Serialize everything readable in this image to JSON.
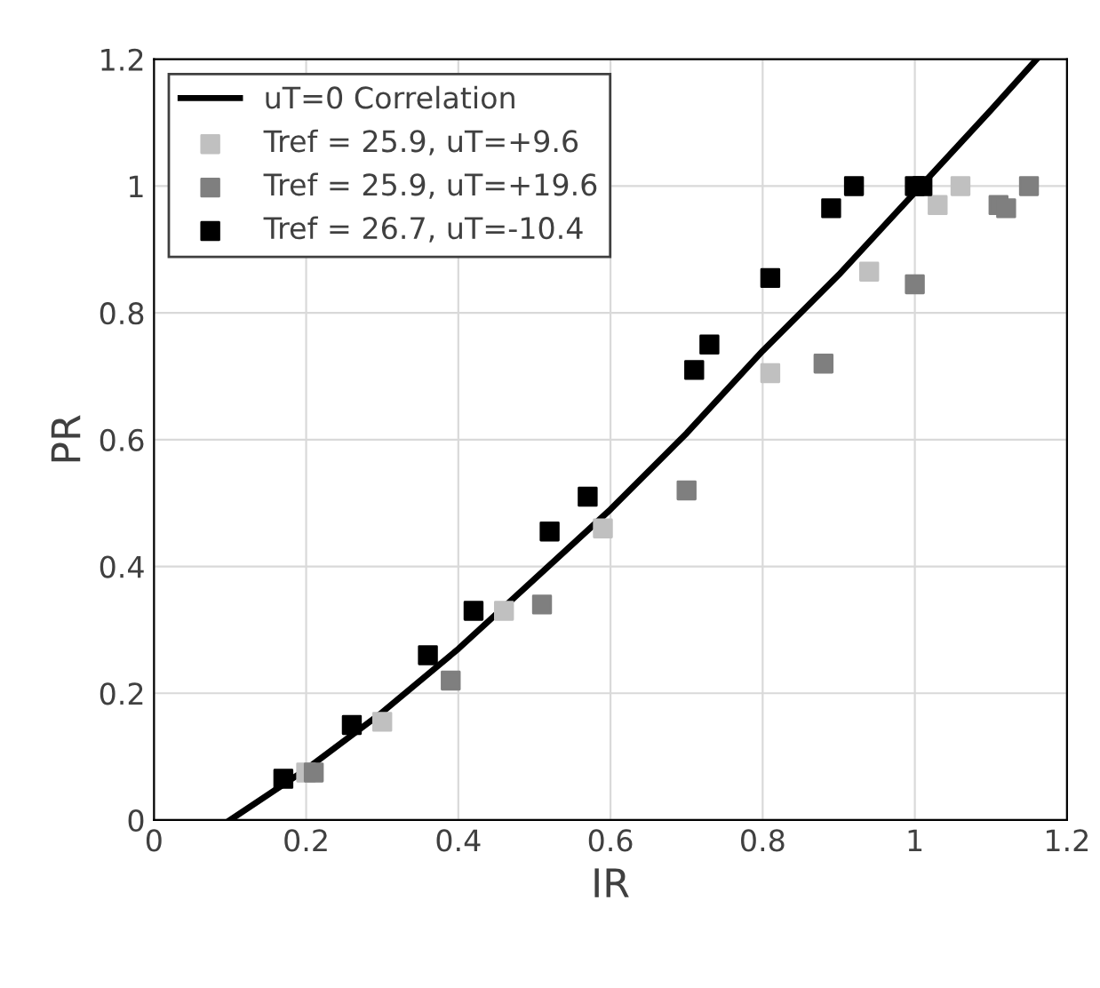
{
  "chart_data": {
    "type": "scatter",
    "xlabel": "IR",
    "ylabel": "PR",
    "xlim": [
      0,
      1.2
    ],
    "ylim": [
      0,
      1.2
    ],
    "xticks": [
      0,
      0.2,
      0.4,
      0.6,
      0.8,
      1,
      1.2
    ],
    "yticks": [
      0,
      0.2,
      0.4,
      0.6,
      0.8,
      1,
      1.2
    ],
    "grid": true,
    "legend": "top left",
    "marker": "square",
    "series": [
      {
        "name": "uT=0 Correlation",
        "type": "line",
        "color": "#000000",
        "line_style": "solid",
        "marker": "none",
        "x": [
          0.1,
          0.2,
          0.3,
          0.4,
          0.5,
          0.6,
          0.7,
          0.8,
          0.9,
          1.0,
          1.1,
          1.16
        ],
        "values": [
          0,
          0.08,
          0.17,
          0.27,
          0.38,
          0.49,
          0.61,
          0.74,
          0.86,
          0.99,
          1.12,
          1.2
        ]
      },
      {
        "name": "Tref = 25.9, uT=+9.6",
        "color": "#c0c0c0",
        "x": [
          0.2,
          0.3,
          0.46,
          0.59,
          0.81,
          0.94,
          1.03,
          1.06
        ],
        "values": [
          0.075,
          0.155,
          0.33,
          0.46,
          0.705,
          0.865,
          0.97,
          1.0
        ]
      },
      {
        "name": "Tref = 25.9, uT=+19.6",
        "color": "#7f7f7f",
        "x": [
          0.21,
          0.39,
          0.51,
          0.7,
          0.88,
          1.0,
          1.11,
          1.12,
          1.15
        ],
        "values": [
          0.075,
          0.22,
          0.34,
          0.52,
          0.72,
          0.845,
          0.97,
          0.965,
          1.0
        ]
      },
      {
        "name": "Tref = 26.7, uT=-10.4",
        "color": "#000000",
        "x": [
          0.17,
          0.26,
          0.36,
          0.42,
          0.52,
          0.57,
          0.71,
          0.73,
          0.81,
          0.89,
          0.92,
          1.0,
          1.01
        ],
        "values": [
          0.065,
          0.15,
          0.26,
          0.33,
          0.455,
          0.51,
          0.71,
          0.75,
          0.855,
          0.965,
          1.0,
          1.0,
          1.0
        ]
      }
    ]
  }
}
